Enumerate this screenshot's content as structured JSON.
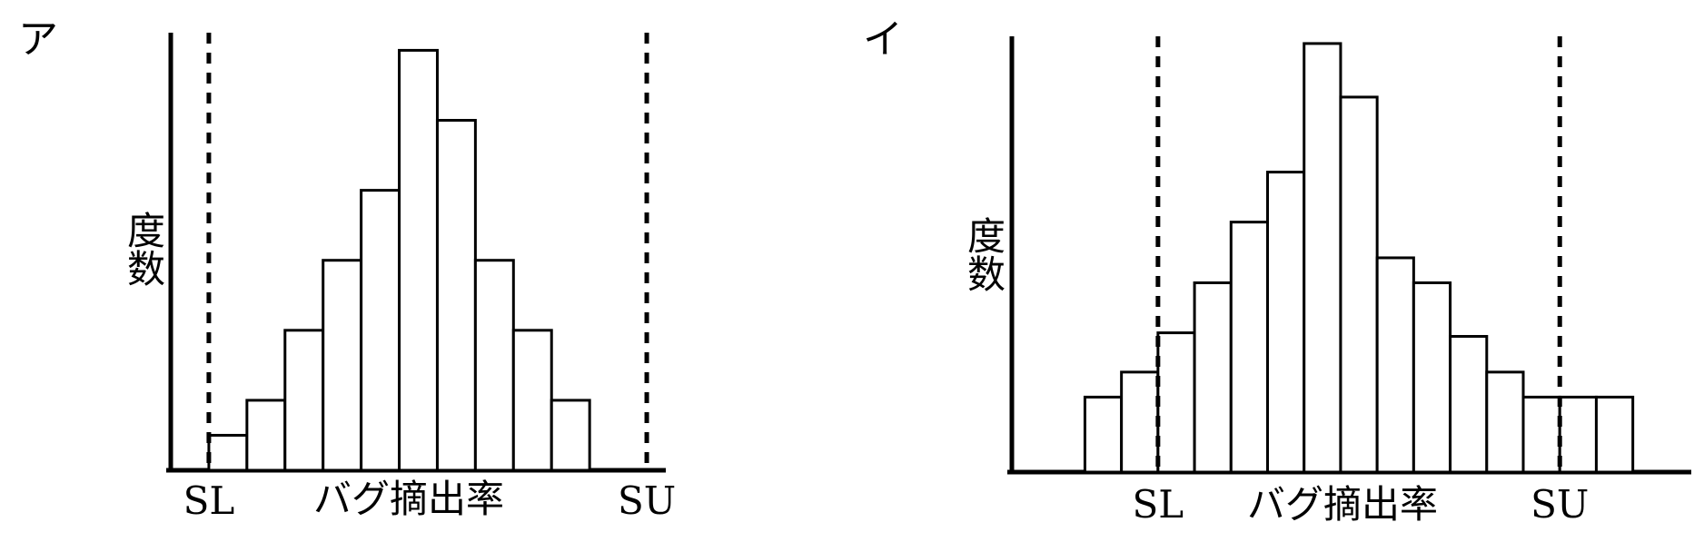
{
  "chart_data": [
    {
      "type": "bar",
      "panel_label": "ア",
      "ylabel": "度数",
      "xlabel": "バグ摘出率",
      "limits": [
        {
          "name": "SL",
          "x": 0
        },
        {
          "name": "SU",
          "x": 11.5
        }
      ],
      "bars": [
        {
          "x": 0,
          "value": 1
        },
        {
          "x": 1,
          "value": 2
        },
        {
          "x": 2,
          "value": 4
        },
        {
          "x": 3,
          "value": 6
        },
        {
          "x": 4,
          "value": 8
        },
        {
          "x": 5,
          "value": 12
        },
        {
          "x": 6,
          "value": 10
        },
        {
          "x": 7,
          "value": 6
        },
        {
          "x": 8,
          "value": 4
        },
        {
          "x": 9,
          "value": 2
        }
      ],
      "xlim": [
        -1,
        12
      ],
      "ylim": [
        0,
        12.4
      ]
    },
    {
      "type": "bar",
      "panel_label": "イ",
      "ylabel": "度数",
      "xlabel": "バグ摘出率",
      "limits": [
        {
          "name": "SL",
          "x": 2
        },
        {
          "name": "SU",
          "x": 13
        }
      ],
      "bars": [
        {
          "x": 0,
          "value": 2.1
        },
        {
          "x": 1,
          "value": 2.8
        },
        {
          "x": 2,
          "value": 3.9
        },
        {
          "x": 3,
          "value": 5.3
        },
        {
          "x": 4,
          "value": 7.0
        },
        {
          "x": 5,
          "value": 8.4
        },
        {
          "x": 6,
          "value": 12.0
        },
        {
          "x": 7,
          "value": 10.5
        },
        {
          "x": 8,
          "value": 6.0
        },
        {
          "x": 9,
          "value": 5.3
        },
        {
          "x": 10,
          "value": 3.8
        },
        {
          "x": 11,
          "value": 2.8
        },
        {
          "x": 12,
          "value": 2.1
        },
        {
          "x": 13,
          "value": 2.1
        },
        {
          "x": 14,
          "value": 2.1
        }
      ],
      "xlim": [
        -2,
        16.6
      ],
      "ylim": [
        0,
        12.1
      ]
    }
  ]
}
